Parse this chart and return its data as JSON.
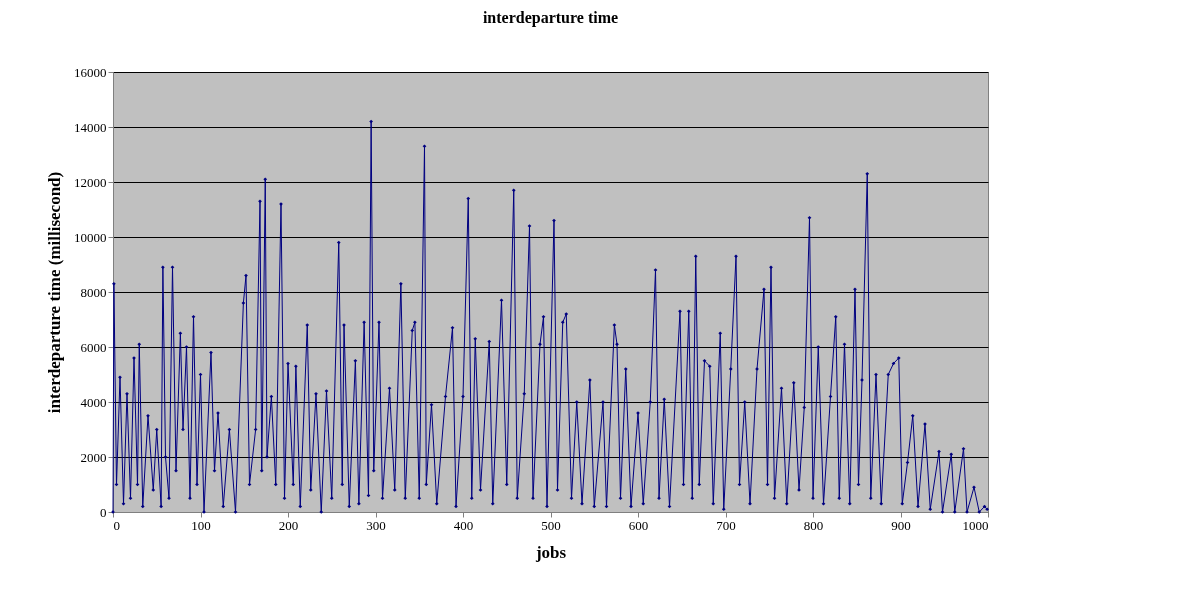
{
  "chart_data": {
    "type": "line",
    "title": "interdeparture time",
    "xlabel": "jobs",
    "ylabel": "interdeparture time (millisecond)",
    "xlim": [
      0,
      1000
    ],
    "xticks": [
      0,
      100,
      200,
      300,
      400,
      500,
      600,
      700,
      800,
      900,
      1000
    ],
    "ylim": [
      0,
      16000
    ],
    "yticks": [
      0,
      2000,
      4000,
      6000,
      8000,
      10000,
      12000,
      14000,
      16000
    ],
    "grid": "y",
    "marker": "diamond",
    "line_style": "solid",
    "series": [
      {
        "color": "#000080",
        "x": [
          0,
          1,
          4,
          8,
          12,
          16,
          20,
          24,
          28,
          30,
          34,
          40,
          46,
          50,
          55,
          57,
          60,
          64,
          68,
          72,
          77,
          80,
          84,
          88,
          92,
          96,
          100,
          104,
          112,
          116,
          120,
          126,
          133,
          140,
          149,
          152,
          156,
          163,
          168,
          170,
          174,
          176,
          181,
          186,
          192,
          196,
          200,
          206,
          209,
          214,
          222,
          226,
          232,
          238,
          244,
          250,
          258,
          262,
          264,
          270,
          277,
          281,
          287,
          292,
          295,
          298,
          304,
          308,
          316,
          322,
          329,
          334,
          342,
          345,
          350,
          356,
          358,
          364,
          370,
          380,
          388,
          392,
          400,
          406,
          410,
          414,
          420,
          430,
          434,
          444,
          450,
          458,
          462,
          470,
          476,
          480,
          488,
          492,
          496,
          504,
          508,
          514,
          518,
          524,
          530,
          536,
          545,
          550,
          560,
          564,
          573,
          576,
          580,
          586,
          592,
          600,
          606,
          614,
          620,
          624,
          630,
          636,
          648,
          652,
          658,
          662,
          666,
          670,
          676,
          682,
          686,
          694,
          698,
          706,
          712,
          716,
          722,
          728,
          736,
          744,
          748,
          752,
          756,
          764,
          770,
          778,
          784,
          790,
          796,
          800,
          806,
          812,
          820,
          826,
          830,
          836,
          842,
          848,
          852,
          856,
          862,
          866,
          872,
          878,
          886,
          892,
          898,
          902,
          908,
          914,
          920,
          928,
          934,
          944,
          948,
          958,
          962,
          972,
          976,
          984,
          990,
          996,
          999
        ],
        "values": [
          0,
          8300,
          1000,
          4900,
          300,
          4300,
          500,
          5600,
          1000,
          6100,
          200,
          3500,
          800,
          3000,
          200,
          8900,
          2000,
          500,
          8900,
          1500,
          6500,
          3000,
          6000,
          500,
          7100,
          1000,
          5000,
          0,
          5800,
          1500,
          3600,
          200,
          3000,
          0,
          7600,
          8600,
          1000,
          3000,
          11300,
          1500,
          12100,
          2000,
          4200,
          1000,
          11200,
          500,
          5400,
          1000,
          5300,
          200,
          6800,
          800,
          4300,
          0,
          4400,
          500,
          9800,
          1000,
          6800,
          200,
          5500,
          300,
          6900,
          600,
          14200,
          1500,
          6900,
          500,
          4500,
          800,
          8300,
          500,
          6600,
          6900,
          500,
          13300,
          1000,
          3900,
          300,
          4200,
          6700,
          200,
          4200,
          11400,
          500,
          6300,
          800,
          6200,
          300,
          7700,
          1000,
          11700,
          500,
          4300,
          10400,
          500,
          6100,
          7100,
          200,
          10600,
          800,
          6900,
          7200,
          500,
          4000,
          300,
          4800,
          200,
          4000,
          200,
          6800,
          6100,
          500,
          5200,
          200,
          3600,
          300,
          4000,
          8800,
          500,
          4100,
          200,
          7300,
          1000,
          7300,
          500,
          9300,
          1000,
          5500,
          5300,
          300,
          6500,
          100,
          5200,
          9300,
          1000,
          4000,
          300,
          5200,
          8100,
          1000,
          8900,
          500,
          4500,
          300,
          4700,
          800,
          3800,
          10700,
          500,
          6000,
          300,
          4200,
          7100,
          500,
          6100,
          300,
          8100,
          1000,
          4800,
          12300,
          500,
          5000,
          300,
          5000,
          5400,
          5600,
          300,
          1800,
          3500,
          200,
          3200,
          100,
          2200,
          0,
          2100,
          0,
          2300,
          0,
          900,
          0,
          200,
          100
        ]
      }
    ]
  }
}
